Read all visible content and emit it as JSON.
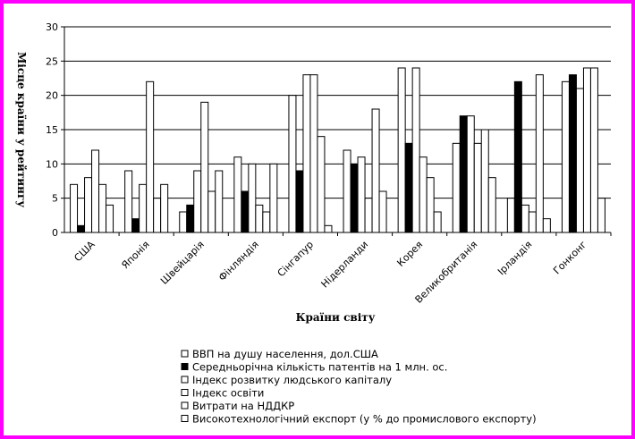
{
  "chart_data": {
    "type": "bar",
    "xlabel": "Країни світу",
    "ylabel": "Місце країни у рейтингу",
    "ylim": [
      0,
      30
    ],
    "yticks": [
      0,
      5,
      10,
      15,
      20,
      25,
      30
    ],
    "grid": true,
    "legend_position": "bottom",
    "categories": [
      "США",
      "Японія",
      "Швейцарія",
      "Фінляндія",
      "Сінгапур",
      "Нідерланди",
      "Корея",
      "Великобританія",
      "Ірландія",
      "Гонконг"
    ],
    "series": [
      {
        "name": "ВВП на душу населення, дол.США",
        "color": "#ffffff",
        "values": [
          7,
          9,
          3,
          11,
          20,
          12,
          24,
          13,
          5,
          22
        ]
      },
      {
        "name": "Середньорічна кількість  патентів на 1 млн. ос.",
        "color": "#000000",
        "values": [
          1,
          2,
          4,
          6,
          9,
          10,
          13,
          17,
          22,
          23
        ]
      },
      {
        "name": "Індекс розвитку людського капіталу",
        "color": "#ffffff",
        "values": [
          8,
          7,
          9,
          10,
          23,
          11,
          24,
          17,
          4,
          21
        ]
      },
      {
        "name": "Індекс освіти",
        "color": "#ffffff",
        "values": [
          12,
          22,
          19,
          4,
          23,
          5,
          11,
          13,
          3,
          24
        ]
      },
      {
        "name": "Витрати на НДДКР",
        "color": "#ffffff",
        "values": [
          7,
          5,
          6,
          3,
          14,
          18,
          8,
          15,
          23,
          24
        ]
      },
      {
        "name": "Високотехнологічний експорт      (у % до промислового експорту)",
        "color": "#ffffff",
        "values": [
          4,
          7,
          9,
          10,
          1,
          6,
          3,
          8,
          2,
          5
        ]
      }
    ]
  }
}
